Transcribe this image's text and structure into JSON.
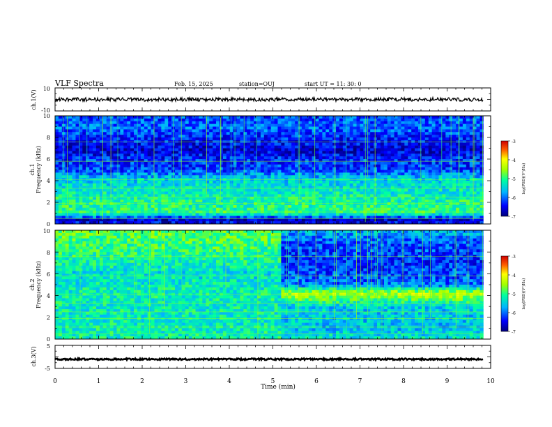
{
  "header": {
    "title": "VLF Spectra",
    "date": "Feb. 15, 2025",
    "station": "station=OUJ",
    "start": "start UT = 11: 30: 0"
  },
  "chart_data": [
    {
      "type": "line",
      "name": "ch1-waveform",
      "ylabel": "ch.1(V)",
      "ylim": [
        -10,
        10
      ],
      "yticks": [
        "10",
        "-10"
      ],
      "xlim": [
        0,
        10
      ],
      "trace_level_v": 0,
      "trace_noise_v": 1.6
    },
    {
      "type": "heatmap",
      "name": "ch1-spectrogram",
      "ylabel": [
        "ch.1",
        "Frequency (kHz)"
      ],
      "ylim": [
        0,
        10
      ],
      "yticks": [
        "0",
        "2",
        "4",
        "6",
        "8",
        "10"
      ],
      "xlim": [
        0,
        10
      ],
      "data_end_min": 9.83,
      "colorbar": {
        "label": "log(PSD)(V²/Hz)",
        "range": [
          -7,
          -3
        ],
        "ticks": [
          "-3",
          "-4",
          "-5",
          "-6",
          "-7"
        ]
      },
      "background_psd_by_freq_khz": [
        [
          0.0,
          -6.4
        ],
        [
          0.4,
          -6.7
        ],
        [
          1.0,
          -5.0
        ],
        [
          2.0,
          -5.1
        ],
        [
          3.0,
          -5.3
        ],
        [
          4.2,
          -5.5
        ],
        [
          5.0,
          -6.2
        ],
        [
          6.0,
          -6.3
        ],
        [
          6.8,
          -6.6
        ],
        [
          8.0,
          -6.3
        ],
        [
          9.0,
          -6.0
        ],
        [
          10.0,
          -6.2
        ]
      ]
    },
    {
      "type": "heatmap",
      "name": "ch2-spectrogram",
      "ylabel": [
        "ch.2",
        "Frequency (kHz)"
      ],
      "ylim": [
        0,
        10
      ],
      "yticks": [
        "0",
        "2",
        "4",
        "6",
        "8",
        "10"
      ],
      "xlim": [
        0,
        10
      ],
      "data_end_min": 9.83,
      "regime_change_min": 5.2,
      "colorbar": {
        "label": "log(PSD)(V²/Hz)",
        "range": [
          -7,
          -3
        ],
        "ticks": [
          "-3",
          "-4",
          "-5",
          "-6",
          "-7"
        ]
      },
      "background_psd_before": [
        [
          0.0,
          -5.2
        ],
        [
          2.0,
          -5.3
        ],
        [
          4.0,
          -5.2
        ],
        [
          6.0,
          -5.4
        ],
        [
          8.0,
          -5.0
        ],
        [
          10.0,
          -4.8
        ]
      ],
      "background_psd_after": [
        [
          0.0,
          -5.3
        ],
        [
          1.0,
          -5.6
        ],
        [
          3.0,
          -5.5
        ],
        [
          4.2,
          -4.3
        ],
        [
          5.0,
          -6.0
        ],
        [
          7.0,
          -6.3
        ],
        [
          9.0,
          -6.1
        ],
        [
          10.0,
          -5.6
        ]
      ]
    },
    {
      "type": "line",
      "name": "ch3-waveform",
      "ylabel": "ch.3(V)",
      "ylim": [
        -5,
        5
      ],
      "yticks": [
        "5",
        "-5"
      ],
      "xlim": [
        0,
        10
      ],
      "xlabel": "Time (min)",
      "xticks": [
        "0",
        "1",
        "2",
        "3",
        "4",
        "5",
        "6",
        "7",
        "8",
        "9",
        "10"
      ],
      "trace_level_v": -1.0,
      "trace_noise_v": 0.35
    }
  ]
}
